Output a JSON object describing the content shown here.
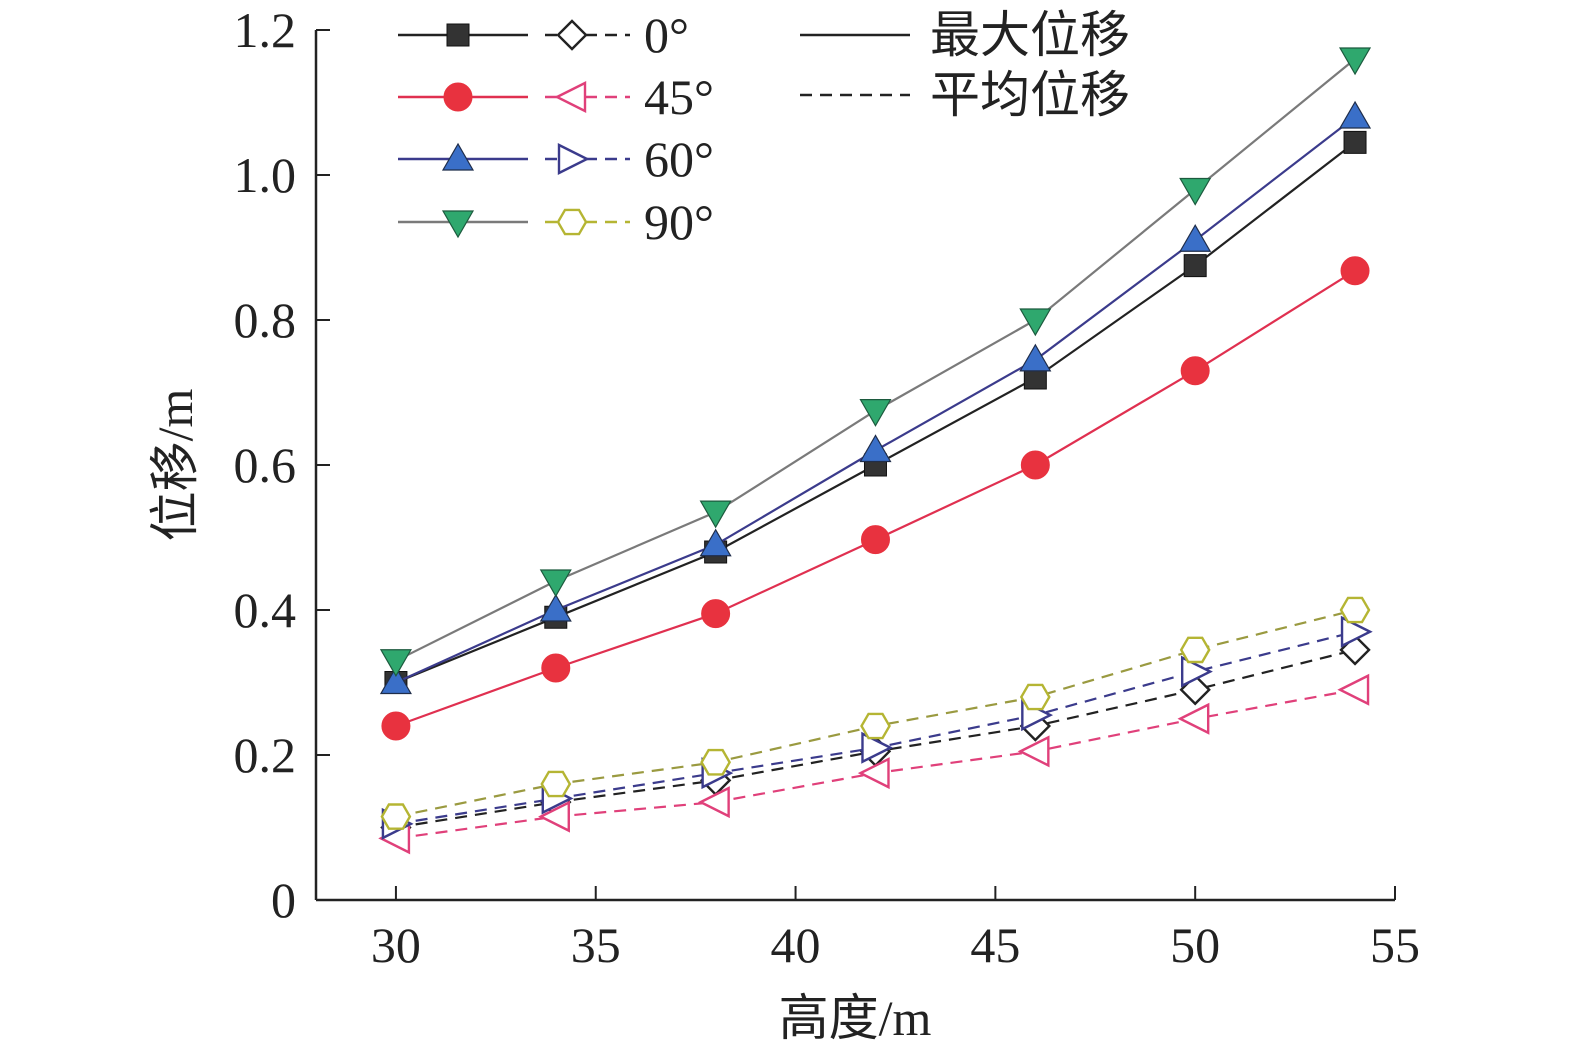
{
  "chart_data": {
    "type": "line",
    "xlabel": "高度/m",
    "ylabel": "位移/m",
    "xlim": [
      28,
      55
    ],
    "ylim": [
      0,
      1.2
    ],
    "x_ticks": [
      "30",
      "35",
      "40",
      "45",
      "50",
      "55"
    ],
    "y_ticks": [
      "0",
      "0.2",
      "0.4",
      "0.6",
      "0.8",
      "1.0",
      "1.2"
    ],
    "x_tick_values": [
      30,
      35,
      40,
      45,
      50,
      55
    ],
    "y_tick_values": [
      0,
      0.2,
      0.4,
      0.6,
      0.8,
      1.0,
      1.2
    ],
    "grid": false,
    "legend_position": "top-left",
    "x": [
      30,
      34,
      38,
      42,
      46,
      50,
      54
    ],
    "series": [
      {
        "name": "0°",
        "kind": "max",
        "color": "#333333",
        "line_color": "#222222",
        "marker": "square",
        "values": [
          0.3,
          0.39,
          0.48,
          0.6,
          0.72,
          0.875,
          1.045
        ]
      },
      {
        "name": "45°",
        "kind": "max",
        "color": "#e8323f",
        "line_color": "#e03050",
        "marker": "circle",
        "values": [
          0.24,
          0.32,
          0.395,
          0.497,
          0.6,
          0.73,
          0.868
        ]
      },
      {
        "name": "60°",
        "kind": "max",
        "color": "#3a6fc8",
        "line_color": "#3b3b8c",
        "marker": "triangle-up",
        "values": [
          0.3,
          0.4,
          0.49,
          0.62,
          0.745,
          0.91,
          1.08
        ]
      },
      {
        "name": "90°",
        "kind": "max",
        "color": "#2fa86e",
        "line_color": "#7a7a7a",
        "marker": "triangle-down",
        "values": [
          0.33,
          0.44,
          0.535,
          0.675,
          0.8,
          0.98,
          1.16
        ]
      },
      {
        "name": "0°",
        "kind": "avg",
        "color": "#222222",
        "line_color": "#222222",
        "marker": "diamond-open",
        "values": [
          0.1,
          0.135,
          0.165,
          0.205,
          0.24,
          0.29,
          0.345
        ]
      },
      {
        "name": "45°",
        "kind": "avg",
        "color": "#e0407a",
        "line_color": "#e0407a",
        "marker": "triangle-left-open",
        "values": [
          0.085,
          0.115,
          0.135,
          0.175,
          0.205,
          0.25,
          0.29
        ]
      },
      {
        "name": "60°",
        "kind": "avg",
        "color": "#3b3b8c",
        "line_color": "#3b3b8c",
        "marker": "triangle-right-open",
        "values": [
          0.105,
          0.14,
          0.175,
          0.21,
          0.255,
          0.315,
          0.37
        ]
      },
      {
        "name": "90°",
        "kind": "avg",
        "color": "#b5b533",
        "line_color": "#9a9a40",
        "marker": "hexagon-open",
        "values": [
          0.115,
          0.16,
          0.19,
          0.24,
          0.28,
          0.345,
          0.4
        ]
      }
    ],
    "legend": {
      "rows": [
        {
          "label": "0°",
          "max_marker": "square",
          "avg_marker": "diamond-open",
          "max_color": "#333333",
          "avg_color": "#222222",
          "line_color": "#222222"
        },
        {
          "label": "45°",
          "max_marker": "circle",
          "avg_marker": "triangle-left-open",
          "max_color": "#e8323f",
          "avg_color": "#e0407a",
          "line_color": "#e03050"
        },
        {
          "label": "60°",
          "max_marker": "triangle-up",
          "avg_marker": "triangle-right-open",
          "max_color": "#3a6fc8",
          "avg_color": "#3b3b8c",
          "line_color": "#3b3b8c"
        },
        {
          "label": "90°",
          "max_marker": "triangle-down",
          "avg_marker": "hexagon-open",
          "max_color": "#2fa86e",
          "avg_color": "#b5b533",
          "line_color": "#7a7a7a"
        }
      ],
      "style_max_label": "最大位移",
      "style_avg_label": "平均位移"
    }
  }
}
